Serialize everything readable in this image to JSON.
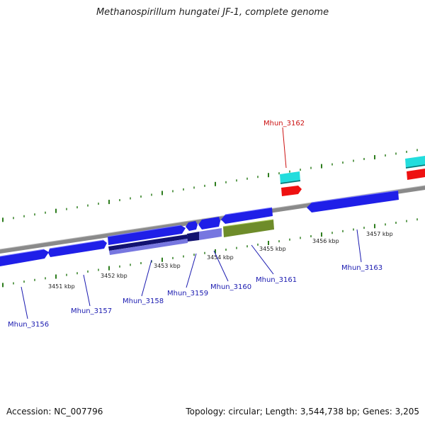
{
  "title": "Methanospirillum hungatei JF-1, complete genome",
  "footer": {
    "accession": "Accession: NC_007796",
    "summary": "Topology: circular; Length: 3,544,738 bp; Genes: 3,205"
  },
  "colors": {
    "backbone": "#8a8a8a",
    "dots": "#2e7d1e",
    "cds_forward": "#1f1fe8",
    "cds_reverse": "#1f1fe8",
    "cds_dark": "#121270",
    "cds_light": "#7777e0",
    "cds_olive": "#6e8c2a",
    "trna": "#22dddd",
    "rrna": "#ee1111",
    "label_blue": "#1a1ab0",
    "label_red": "#cc1111"
  },
  "ticks": [
    "3451 kbp",
    "3452 kbp",
    "3453 kbp",
    "3454 kbp",
    "3455 kbp",
    "3456 kbp",
    "3457 kbp"
  ],
  "genes": [
    {
      "id": "g3156",
      "label": "Mhun_3156",
      "color": "label_blue"
    },
    {
      "id": "g3157",
      "label": "Mhun_3157",
      "color": "label_blue"
    },
    {
      "id": "g3158",
      "label": "Mhun_3158",
      "color": "label_blue"
    },
    {
      "id": "g3159",
      "label": "Mhun_3159",
      "color": "label_blue"
    },
    {
      "id": "g3160",
      "label": "Mhun_3160",
      "color": "label_blue"
    },
    {
      "id": "g3161",
      "label": "Mhun_3161",
      "color": "label_blue"
    },
    {
      "id": "g3162",
      "label": "Mhun_3162",
      "color": "label_red"
    },
    {
      "id": "g3163",
      "label": "Mhun_3163",
      "color": "label_blue"
    }
  ]
}
